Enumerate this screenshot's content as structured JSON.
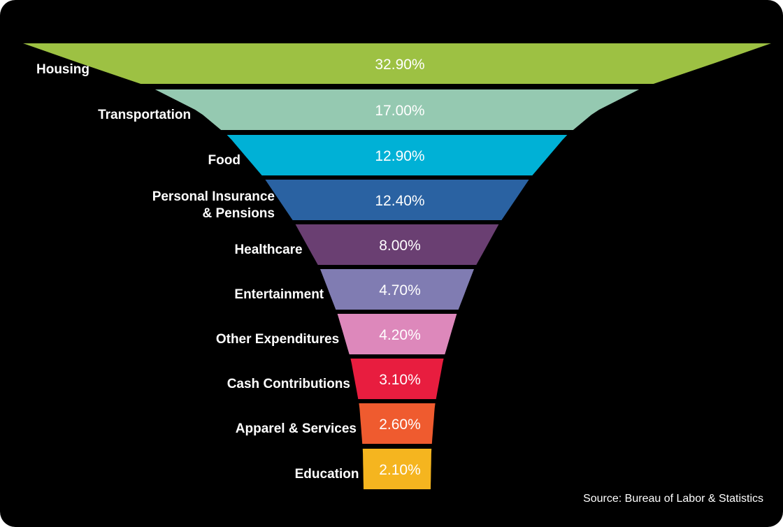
{
  "chart_data": {
    "type": "funnel",
    "categories": [
      "Housing",
      "Transportation",
      "Food",
      "Personal Insurance & Pensions",
      "Healthcare",
      "Entertainment",
      "Other Expenditures",
      "Cash Contributions",
      "Apparel & Services",
      "Education"
    ],
    "category_label_lines": [
      [
        "Housing"
      ],
      [
        "Transportation"
      ],
      [
        "Food"
      ],
      [
        "Personal Insurance",
        "& Pensions"
      ],
      [
        "Healthcare"
      ],
      [
        "Entertainment"
      ],
      [
        "Other Expenditures"
      ],
      [
        "Cash Contributions"
      ],
      [
        "Apparel & Services"
      ],
      [
        "Education"
      ]
    ],
    "values": [
      32.9,
      17.0,
      12.9,
      12.4,
      8.0,
      4.7,
      4.2,
      3.1,
      2.6,
      2.1
    ],
    "value_labels": [
      "32.90%",
      "17.00%",
      "12.90%",
      "12.40%",
      "8.00%",
      "4.70%",
      "4.20%",
      "3.10%",
      "2.60%",
      "2.10%"
    ],
    "colors": [
      "#9dc143",
      "#95c9b1",
      "#00b1d6",
      "#2a62a2",
      "#6a3f72",
      "#807cb2",
      "#dd88bb",
      "#e81d3f",
      "#ef5b2f",
      "#f5b51f"
    ],
    "background_color": "#000000",
    "source": "Source: Bureau of Labor & Statistics"
  }
}
